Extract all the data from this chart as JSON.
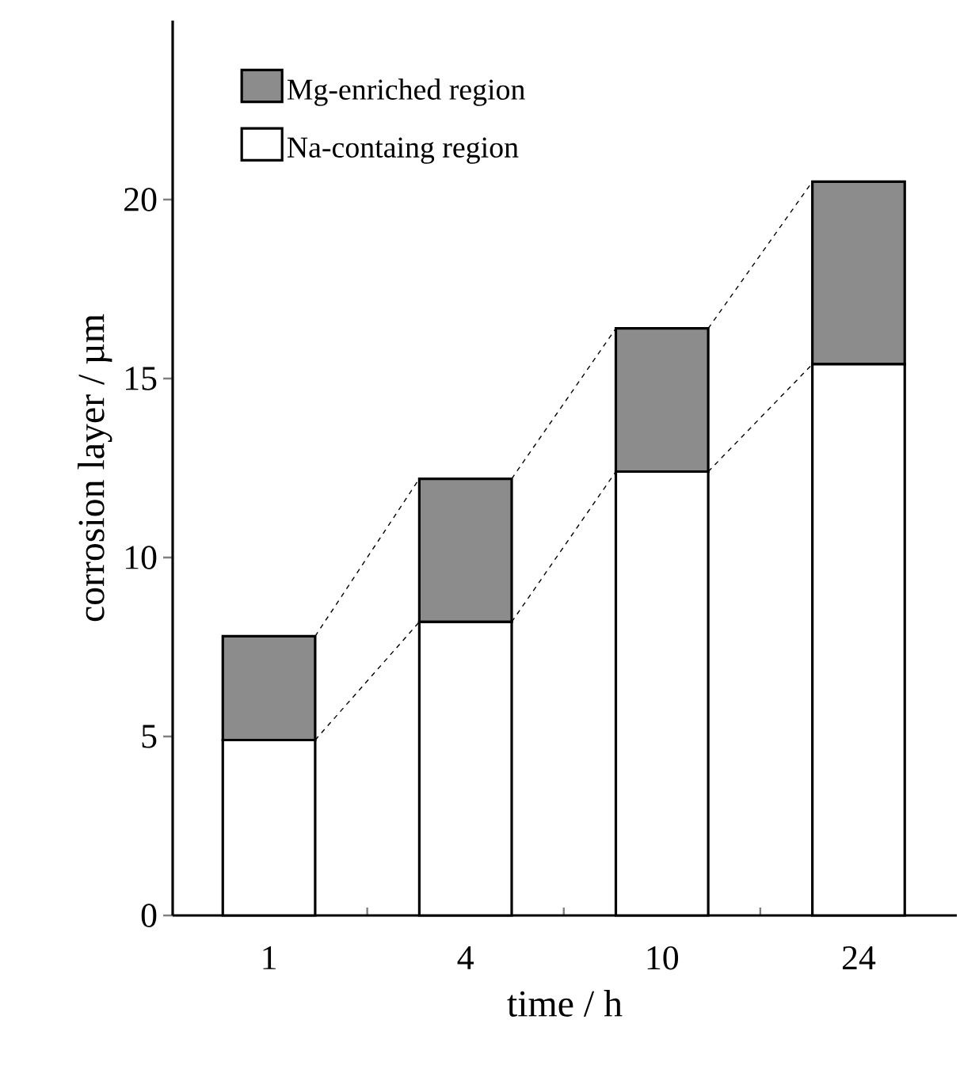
{
  "chart_data": {
    "type": "bar",
    "stacked": true,
    "xlabel": "time / h",
    "ylabel": "corrosion layer / µm",
    "categories": [
      "1",
      "4",
      "10",
      "24"
    ],
    "series": [
      {
        "name": "Na-containg region",
        "color": "#ffffff",
        "values": [
          4.9,
          8.2,
          12.4,
          15.4
        ]
      },
      {
        "name": "Mg-enriched region",
        "color": "#8c8c8c",
        "values": [
          2.9,
          4.0,
          4.0,
          5.1
        ]
      }
    ],
    "ylim": [
      0,
      25
    ],
    "yticks": [
      0,
      5,
      10,
      15,
      20
    ],
    "grid": false,
    "legend": "top left",
    "line_style": "dashed"
  }
}
